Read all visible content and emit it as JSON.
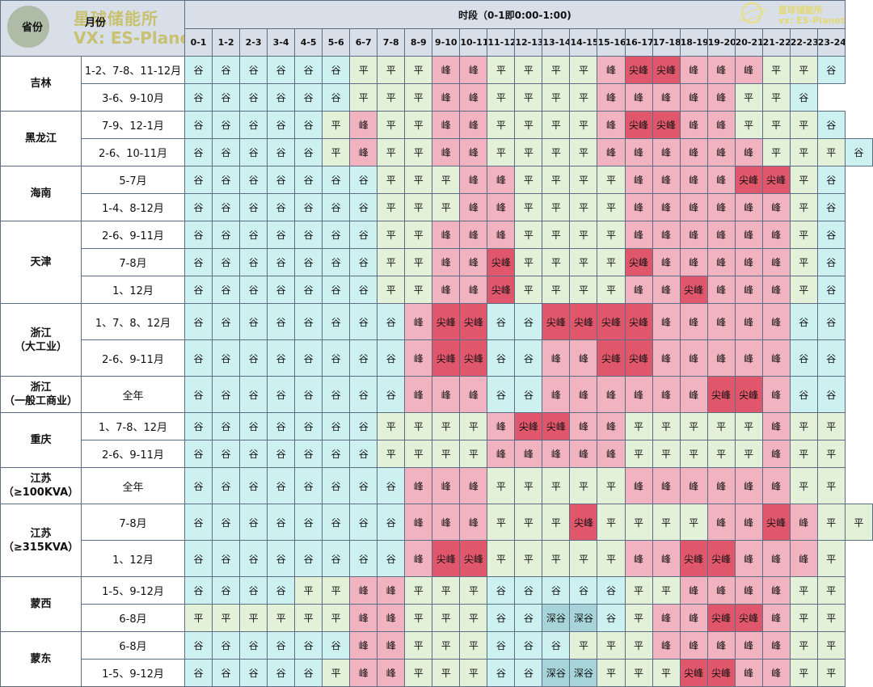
{
  "header": {
    "province_label": "省份",
    "month_label": "月份",
    "period_title": "时段（0-1即0:00-1:00)",
    "logo_left_line1": "星球储能所",
    "logo_left_line2": "VX: ES-Planet",
    "logo_right_line1": "星球储能所",
    "logo_right_line2": "vx: ES-Planet",
    "hours": [
      "0-1",
      "1-2",
      "2-3",
      "3-4",
      "4-5",
      "5-6",
      "6-7",
      "7-8",
      "8-9",
      "9-10",
      "10-11",
      "11-12",
      "12-13",
      "13-14",
      "14-15",
      "15-16",
      "16-17",
      "17-18",
      "18-19",
      "19-20",
      "20-21",
      "21-22",
      "22-23",
      "23-24"
    ]
  },
  "legend_colors": {
    "谷": "#cdf0f1",
    "平": "#e3f1d9",
    "峰": "#f2b3c0",
    "尖峰": "#e0576c",
    "深谷": "#a6d4d8"
  },
  "groups": [
    {
      "province": "吉林",
      "rows": [
        {
          "month": "1-2、7-8、11-12月",
          "cells": [
            [
              "谷",
              6
            ],
            [
              "平",
              3
            ],
            [
              "峰",
              2
            ],
            [
              "平",
              4
            ],
            [
              "峰",
              1
            ],
            [
              "尖峰",
              2
            ],
            [
              "峰",
              3
            ],
            [
              "平",
              2
            ],
            [
              "谷",
              1
            ]
          ]
        },
        {
          "month": "3-6、9-10月",
          "cells": [
            [
              "谷",
              6
            ],
            [
              "平",
              3
            ],
            [
              "峰",
              2
            ],
            [
              "平",
              4
            ],
            [
              "峰",
              5
            ],
            [
              "平",
              2
            ],
            [
              "谷",
              1
            ]
          ]
        }
      ]
    },
    {
      "province": "黑龙江",
      "rows": [
        {
          "month": "7-9、12-1月",
          "cells": [
            [
              "谷",
              5
            ],
            [
              "平",
              1
            ],
            [
              "峰",
              1
            ],
            [
              "平",
              2
            ],
            [
              "峰",
              2
            ],
            [
              "平",
              4
            ],
            [
              "峰",
              1
            ],
            [
              "尖峰",
              2
            ],
            [
              "峰",
              2
            ],
            [
              "平",
              1
            ],
            [
              "平",
              2
            ],
            [
              "谷",
              1
            ]
          ]
        },
        {
          "month": "2-6、10-11月",
          "cells": [
            [
              "谷",
              5
            ],
            [
              "平",
              1
            ],
            [
              "峰",
              1
            ],
            [
              "平",
              2
            ],
            [
              "峰",
              2
            ],
            [
              "平",
              4
            ],
            [
              "峰",
              6
            ],
            [
              "平",
              1
            ],
            [
              "平",
              2
            ],
            [
              "谷",
              1
            ]
          ]
        }
      ]
    },
    {
      "province": "海南",
      "rows": [
        {
          "month": "5-7月",
          "cells": [
            [
              "谷",
              7
            ],
            [
              "平",
              2
            ],
            [
              "平",
              1
            ],
            [
              "峰",
              2
            ],
            [
              "平",
              4
            ],
            [
              "峰",
              4
            ],
            [
              "尖峰",
              2
            ],
            [
              "平",
              1
            ],
            [
              "谷",
              1
            ]
          ]
        },
        {
          "month": "1-4、8-12月",
          "cells": [
            [
              "谷",
              7
            ],
            [
              "平",
              2
            ],
            [
              "平",
              1
            ],
            [
              "峰",
              2
            ],
            [
              "平",
              4
            ],
            [
              "峰",
              6
            ],
            [
              "平",
              1
            ],
            [
              "谷",
              1
            ]
          ]
        }
      ]
    },
    {
      "province": "天津",
      "rows": [
        {
          "month": "2-6、9-11月",
          "cells": [
            [
              "谷",
              7
            ],
            [
              "平",
              2
            ],
            [
              "峰",
              3
            ],
            [
              "平",
              4
            ],
            [
              "峰",
              6
            ],
            [
              "平",
              1
            ],
            [
              "谷",
              1
            ]
          ]
        },
        {
          "month": "7-8月",
          "cells": [
            [
              "谷",
              7
            ],
            [
              "平",
              2
            ],
            [
              "峰",
              2
            ],
            [
              "尖峰",
              1
            ],
            [
              "平",
              4
            ],
            [
              "尖峰",
              1
            ],
            [
              "峰",
              5
            ],
            [
              "平",
              1
            ],
            [
              "谷",
              1
            ]
          ]
        },
        {
          "month": "1、12月",
          "cells": [
            [
              "谷",
              7
            ],
            [
              "平",
              2
            ],
            [
              "峰",
              2
            ],
            [
              "尖峰",
              1
            ],
            [
              "平",
              4
            ],
            [
              "峰",
              2
            ],
            [
              "尖峰",
              1
            ],
            [
              "峰",
              3
            ],
            [
              "平",
              1
            ],
            [
              "谷",
              1
            ]
          ]
        }
      ]
    },
    {
      "province": "浙江\n（大工业）",
      "tall": true,
      "rows": [
        {
          "month": "1、7、8、12月",
          "cells": [
            [
              "谷",
              8
            ],
            [
              "峰",
              1
            ],
            [
              "尖峰",
              2
            ],
            [
              "谷",
              2
            ],
            [
              "尖峰",
              4
            ],
            [
              "峰",
              5
            ],
            [
              "谷",
              2
            ]
          ]
        },
        {
          "month": "2-6、9-11月",
          "cells": [
            [
              "谷",
              8
            ],
            [
              "峰",
              1
            ],
            [
              "尖峰",
              2
            ],
            [
              "谷",
              2
            ],
            [
              "峰",
              2
            ],
            [
              "尖峰",
              2
            ],
            [
              "峰",
              5
            ],
            [
              "谷",
              2
            ]
          ]
        }
      ]
    },
    {
      "province": "浙江\n（一般工商业）",
      "tall": true,
      "rows": [
        {
          "month": "全年",
          "cells": [
            [
              "谷",
              8
            ],
            [
              "峰",
              3
            ],
            [
              "谷",
              2
            ],
            [
              "峰",
              6
            ],
            [
              "尖峰",
              2
            ],
            [
              "峰",
              1
            ],
            [
              "谷",
              2
            ]
          ]
        }
      ]
    },
    {
      "province": "重庆",
      "rows": [
        {
          "month": "1、7-8、12月",
          "cells": [
            [
              "谷",
              7
            ],
            [
              "平",
              2
            ],
            [
              "平",
              2
            ],
            [
              "峰",
              1
            ],
            [
              "尖峰",
              2
            ],
            [
              "峰",
              2
            ],
            [
              "平",
              5
            ],
            [
              "峰",
              1
            ],
            [
              "平",
              2
            ]
          ]
        },
        {
          "month": "2-6、9-11月",
          "cells": [
            [
              "谷",
              7
            ],
            [
              "平",
              2
            ],
            [
              "平",
              2
            ],
            [
              "峰",
              5
            ],
            [
              "平",
              5
            ],
            [
              "峰",
              1
            ],
            [
              "平",
              2
            ]
          ]
        }
      ]
    },
    {
      "province": "江苏\n（≥100KVA）",
      "tall": true,
      "rows": [
        {
          "month": "全年",
          "cells": [
            [
              "谷",
              8
            ],
            [
              "峰",
              3
            ],
            [
              "平",
              5
            ],
            [
              "峰",
              6
            ],
            [
              "平",
              2
            ]
          ]
        }
      ]
    },
    {
      "province": "江苏\n（≥315KVA）",
      "tall": true,
      "rows": [
        {
          "month": "7-8月",
          "cells": [
            [
              "谷",
              8
            ],
            [
              "峰",
              3
            ],
            [
              "平",
              3
            ],
            [
              "尖峰",
              1
            ],
            [
              "平",
              1
            ],
            [
              "平",
              3
            ],
            [
              "峰",
              2
            ],
            [
              "尖峰",
              1
            ],
            [
              "峰",
              1
            ],
            [
              "平",
              2
            ]
          ]
        },
        {
          "month": "1、12月",
          "cells": [
            [
              "谷",
              8
            ],
            [
              "峰",
              1
            ],
            [
              "尖峰",
              2
            ],
            [
              "平",
              5
            ],
            [
              "峰",
              1
            ],
            [
              "峰",
              1
            ],
            [
              "尖峰",
              2
            ],
            [
              "峰",
              1
            ],
            [
              "峰",
              2
            ],
            [
              "平",
              1
            ]
          ]
        }
      ]
    },
    {
      "province": "蒙西",
      "rows": [
        {
          "month": "1-5、9-12月",
          "cells": [
            [
              "谷",
              4
            ],
            [
              "平",
              2
            ],
            [
              "峰",
              2
            ],
            [
              "平",
              3
            ],
            [
              "谷",
              5
            ],
            [
              "平",
              1
            ],
            [
              "平",
              1
            ],
            [
              "峰",
              3
            ],
            [
              "峰",
              1
            ],
            [
              "平",
              2
            ]
          ]
        },
        {
          "month": "6-8月",
          "cells": [
            [
              "平",
              6
            ],
            [
              "峰",
              2
            ],
            [
              "平",
              3
            ],
            [
              "谷",
              2
            ],
            [
              "深谷",
              2
            ],
            [
              "谷",
              1
            ],
            [
              "平",
              1
            ],
            [
              "峰",
              2
            ],
            [
              "尖峰",
              2
            ],
            [
              "峰",
              1
            ],
            [
              "平",
              2
            ]
          ]
        }
      ]
    },
    {
      "province": "蒙东",
      "rows": [
        {
          "month": "6-8月",
          "cells": [
            [
              "谷",
              6
            ],
            [
              "峰",
              2
            ],
            [
              "平",
              3
            ],
            [
              "谷",
              3
            ],
            [
              "平",
              1
            ],
            [
              "平",
              2
            ],
            [
              "峰",
              5
            ],
            [
              "平",
              2
            ]
          ]
        },
        {
          "month": "1-5、9-12月",
          "cells": [
            [
              "谷",
              5
            ],
            [
              "平",
              1
            ],
            [
              "峰",
              2
            ],
            [
              "平",
              3
            ],
            [
              "谷",
              2
            ],
            [
              "深谷",
              2
            ],
            [
              "平",
              3
            ],
            [
              "尖峰",
              2
            ],
            [
              "峰",
              2
            ],
            [
              "平",
              2
            ]
          ]
        }
      ]
    }
  ]
}
